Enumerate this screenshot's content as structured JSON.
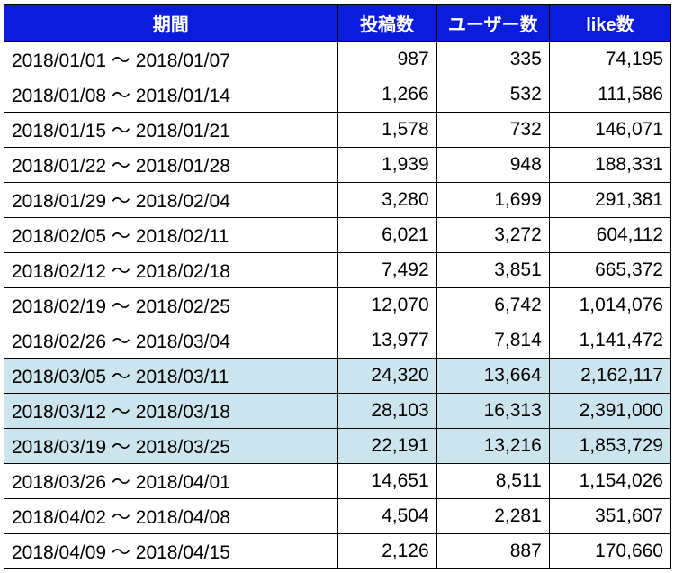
{
  "table": {
    "header_bg_color": "#0b1cdd",
    "header_text_color": "#ffffff",
    "highlight_bg_color": "#cce4ed",
    "border_color": "#000000",
    "columns": [
      "期間",
      "投稿数",
      "ユーザー数",
      "like数"
    ],
    "rows": [
      {
        "period": "2018/01/01 〜 2018/01/07",
        "posts": "987",
        "users": "335",
        "likes": "74,195",
        "highlighted": false
      },
      {
        "period": "2018/01/08 〜 2018/01/14",
        "posts": "1,266",
        "users": "532",
        "likes": "111,586",
        "highlighted": false
      },
      {
        "period": "2018/01/15 〜 2018/01/21",
        "posts": "1,578",
        "users": "732",
        "likes": "146,071",
        "highlighted": false
      },
      {
        "period": "2018/01/22 〜 2018/01/28",
        "posts": "1,939",
        "users": "948",
        "likes": "188,331",
        "highlighted": false
      },
      {
        "period": "2018/01/29 〜 2018/02/04",
        "posts": "3,280",
        "users": "1,699",
        "likes": "291,381",
        "highlighted": false
      },
      {
        "period": "2018/02/05 〜 2018/02/11",
        "posts": "6,021",
        "users": "3,272",
        "likes": "604,112",
        "highlighted": false
      },
      {
        "period": "2018/02/12 〜 2018/02/18",
        "posts": "7,492",
        "users": "3,851",
        "likes": "665,372",
        "highlighted": false
      },
      {
        "period": "2018/02/19 〜 2018/02/25",
        "posts": "12,070",
        "users": "6,742",
        "likes": "1,014,076",
        "highlighted": false
      },
      {
        "period": "2018/02/26 〜 2018/03/04",
        "posts": "13,977",
        "users": "7,814",
        "likes": "1,141,472",
        "highlighted": false
      },
      {
        "period": "2018/03/05 〜 2018/03/11",
        "posts": "24,320",
        "users": "13,664",
        "likes": "2,162,117",
        "highlighted": true
      },
      {
        "period": "2018/03/12 〜 2018/03/18",
        "posts": "28,103",
        "users": "16,313",
        "likes": "2,391,000",
        "highlighted": true
      },
      {
        "period": "2018/03/19 〜 2018/03/25",
        "posts": "22,191",
        "users": "13,216",
        "likes": "1,853,729",
        "highlighted": true
      },
      {
        "period": "2018/03/26 〜 2018/04/01",
        "posts": "14,651",
        "users": "8,511",
        "likes": "1,154,026",
        "highlighted": false
      },
      {
        "period": "2018/04/02 〜 2018/04/08",
        "posts": "4,504",
        "users": "2,281",
        "likes": "351,607",
        "highlighted": false
      },
      {
        "period": "2018/04/09 〜 2018/04/15",
        "posts": "2,126",
        "users": "887",
        "likes": "170,660",
        "highlighted": false
      }
    ]
  }
}
